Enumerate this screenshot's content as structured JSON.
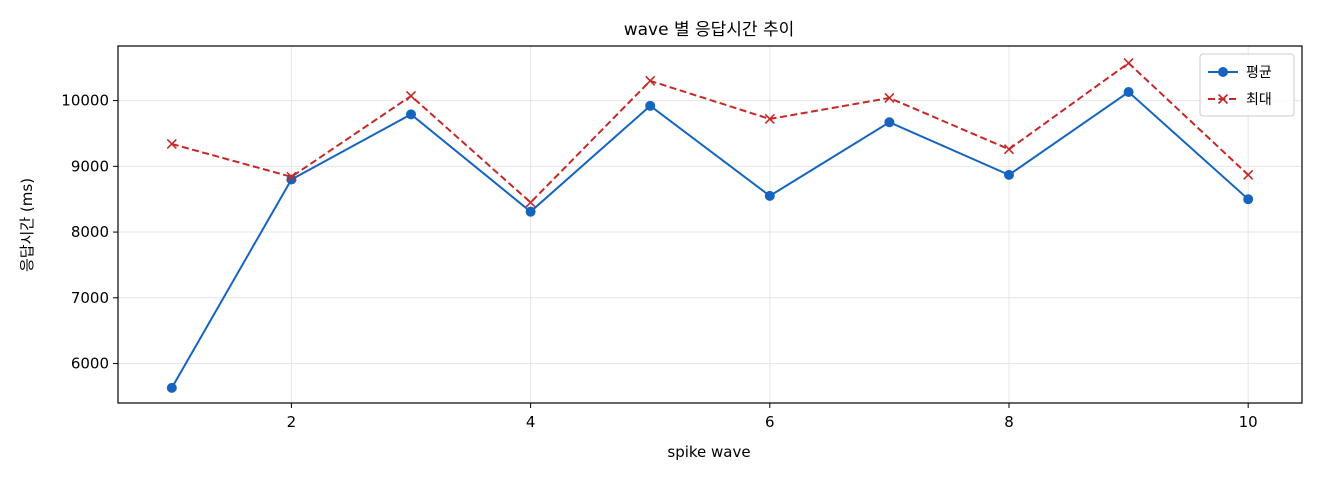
{
  "chart_data": {
    "type": "line",
    "title": "wave 별 응답시간 추이",
    "xlabel": "spike wave",
    "ylabel": "응답시간 (ms)",
    "x": [
      1,
      2,
      3,
      4,
      5,
      6,
      7,
      8,
      9,
      10
    ],
    "xlim": [
      0.55,
      10.45
    ],
    "ylim": [
      5400,
      10830
    ],
    "xticks": [
      2,
      4,
      6,
      8,
      10
    ],
    "yticks": [
      6000,
      7000,
      8000,
      9000,
      10000
    ],
    "grid": true,
    "legend_position": "top-right",
    "series": [
      {
        "name": "평균",
        "color": "#1565c0",
        "line_style": "solid",
        "marker": "circle",
        "values": [
          5630,
          8800,
          9790,
          8310,
          9920,
          8550,
          9670,
          8870,
          10130,
          8500
        ]
      },
      {
        "name": "최대",
        "color": "#c62828",
        "line_style": "dashed",
        "marker": "x",
        "values": [
          9340,
          8840,
          10070,
          8450,
          10300,
          9720,
          10040,
          9260,
          10570,
          8870
        ]
      }
    ]
  }
}
